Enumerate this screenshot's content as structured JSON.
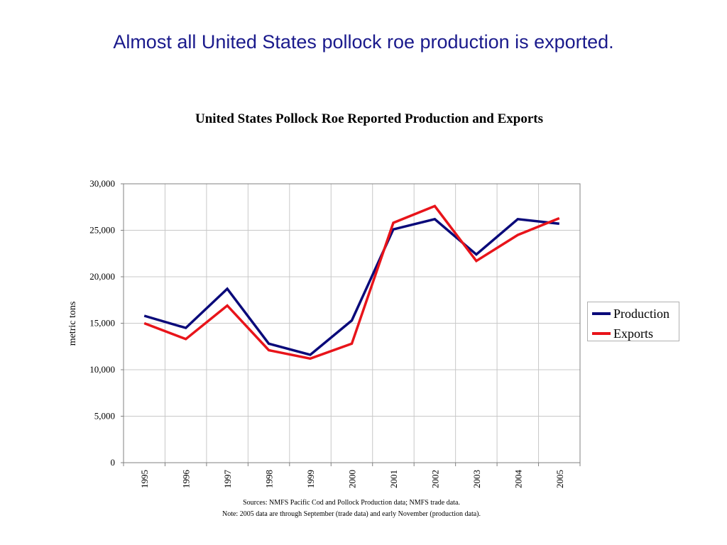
{
  "slide": {
    "title": "Almost all United States pollock roe production is exported."
  },
  "chart_data": {
    "type": "line",
    "title": "United States Pollock Roe Reported Production and Exports",
    "xlabel": "",
    "ylabel": "metric tons",
    "categories": [
      "1995",
      "1996",
      "1997",
      "1998",
      "1999",
      "2000",
      "2001",
      "2002",
      "2003",
      "2004",
      "2005"
    ],
    "ylim": [
      0,
      30000
    ],
    "yticks": [
      "0",
      "5,000",
      "10,000",
      "15,000",
      "20,000",
      "25,000",
      "30,000"
    ],
    "grid": true,
    "legend_position": "right",
    "series": [
      {
        "name": "Production",
        "color": "#0a0a7a",
        "values": [
          15800,
          14500,
          18700,
          12800,
          11600,
          15300,
          25100,
          26200,
          22400,
          26200,
          25700
        ]
      },
      {
        "name": "Exports",
        "color": "#e8141a",
        "values": [
          15000,
          13300,
          16900,
          12100,
          11200,
          12800,
          25800,
          27600,
          21700,
          24500,
          26300
        ]
      }
    ]
  },
  "footer": {
    "sources": "Sources:  NMFS Pacific Cod and Pollock Production data; NMFS trade data.",
    "note": "Note:  2005 data are through September (trade data) and early November (production data)."
  }
}
